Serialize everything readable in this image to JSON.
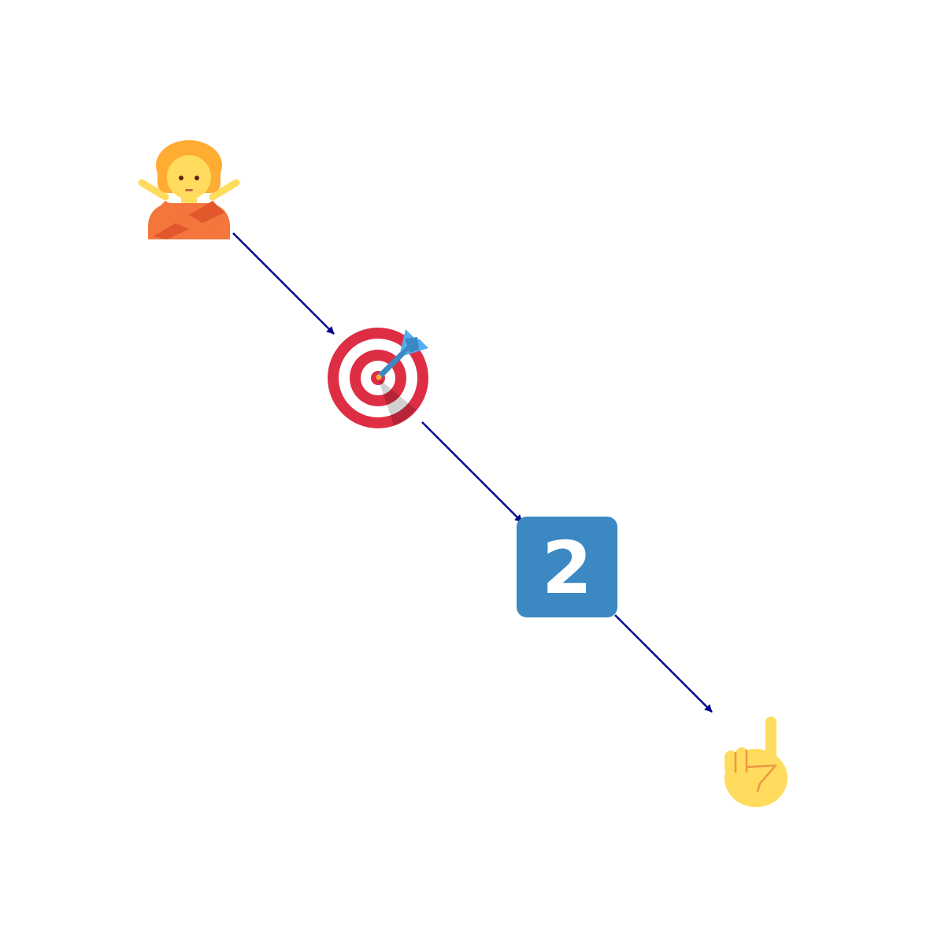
{
  "diagram": {
    "type": "emoji-sequence",
    "nodes": [
      {
        "id": "n1",
        "icon": "person-gesturing-no-icon",
        "emoji": "🙅"
      },
      {
        "id": "n2",
        "icon": "direct-hit-target-icon",
        "emoji": "🎯"
      },
      {
        "id": "n3",
        "icon": "keycap-two-icon",
        "emoji": "2️⃣",
        "label": "2"
      },
      {
        "id": "n4",
        "icon": "index-pointing-up-icon",
        "emoji": "☝️"
      }
    ],
    "edges": [
      {
        "from": "n1",
        "to": "n2"
      },
      {
        "from": "n2",
        "to": "n3"
      },
      {
        "from": "n3",
        "to": "n4"
      }
    ],
    "colors": {
      "arrow": "#00008b",
      "skin": "#ffdc5d",
      "hair": "#ffac33",
      "shirt": "#f4763d",
      "shirt_dark": "#e2572b",
      "target_red": "#dd2e44",
      "dart_blue": "#55acee",
      "keycap_blue": "#3b88c3",
      "hand_line": "#ef9645"
    }
  }
}
